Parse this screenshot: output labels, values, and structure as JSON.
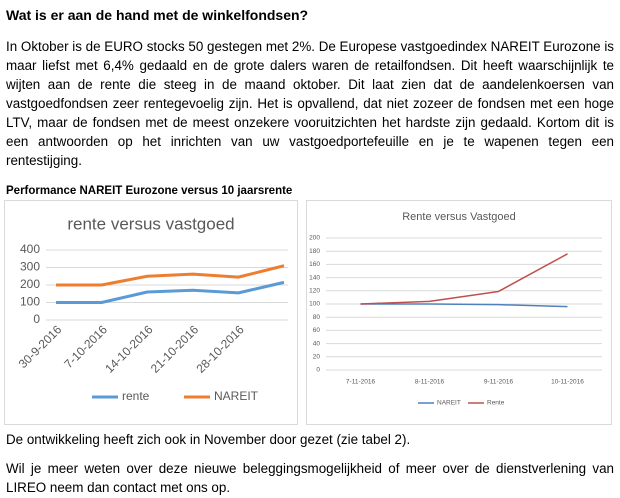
{
  "title": "Wat is er aan de hand met de winkelfondsen?",
  "paragraphs": [
    "In Oktober is de EURO stocks 50 gestegen met 2%. De Europese vastgoedindex NAREIT Eurozone is maar liefst met  6,4% gedaald en de grote dalers waren de retailfondsen. Dit heeft waarschijnlijk te wijten aan de rente die steeg in de maand oktober. Dit laat zien dat de aandelenkoersen van vastgoedfondsen zeer rentegevoelig zijn. Het is opvallend, dat niet zozeer de fondsen met een hoge LTV, maar de fondsen met de meest onzekere vooruitzichten het hardste zijn gedaald.  Kortom dit is een antwoorden op het inrichten van uw vastgoedportefeuille en je te wapenen tegen een rentestijging."
  ],
  "caption": "Performance NAREIT Eurozone versus 10 jaarsrente",
  "chart_data": [
    {
      "type": "line",
      "title": "rente versus vastgoed",
      "categories": [
        "30-9-2016",
        "7-10-2016",
        "14-10-2016",
        "21-10-2016",
        "28-10-2016",
        null
      ],
      "series": [
        {
          "name": "rente",
          "color": "#5b9bd5",
          "values": [
            100,
            100,
            160,
            170,
            155,
            215
          ]
        },
        {
          "name": "NAREIT",
          "color": "#ed7d31",
          "values": [
            200,
            200,
            250,
            262,
            245,
            310
          ]
        }
      ],
      "ylim": [
        0,
        400
      ],
      "yticks": [
        0,
        100,
        200,
        300,
        400
      ],
      "grid": true,
      "legend": "bottom"
    },
    {
      "type": "line",
      "title": "Rente versus Vastgoed",
      "categories": [
        "7-11-2016",
        "8-11-2016",
        "9-11-2016",
        "10-11-2016"
      ],
      "series": [
        {
          "name": "NAREIT",
          "color": "#4f81bd",
          "values": [
            100,
            100,
            99,
            96
          ]
        },
        {
          "name": "Rente",
          "color": "#c0504d",
          "values": [
            100,
            104,
            119,
            176
          ]
        }
      ],
      "ylim": [
        0,
        200
      ],
      "yticks": [
        0,
        20,
        40,
        60,
        80,
        100,
        120,
        140,
        160,
        180,
        200
      ],
      "grid": true,
      "legend": "bottom"
    }
  ],
  "footer": [
    "De ontwikkeling heeft zich ook in November door gezet (zie tabel 2).",
    "Wil je meer weten over deze nieuwe beleggingsmogelijkheid of meer over de dienstverlening van LIREO neem dan contact met ons op."
  ]
}
